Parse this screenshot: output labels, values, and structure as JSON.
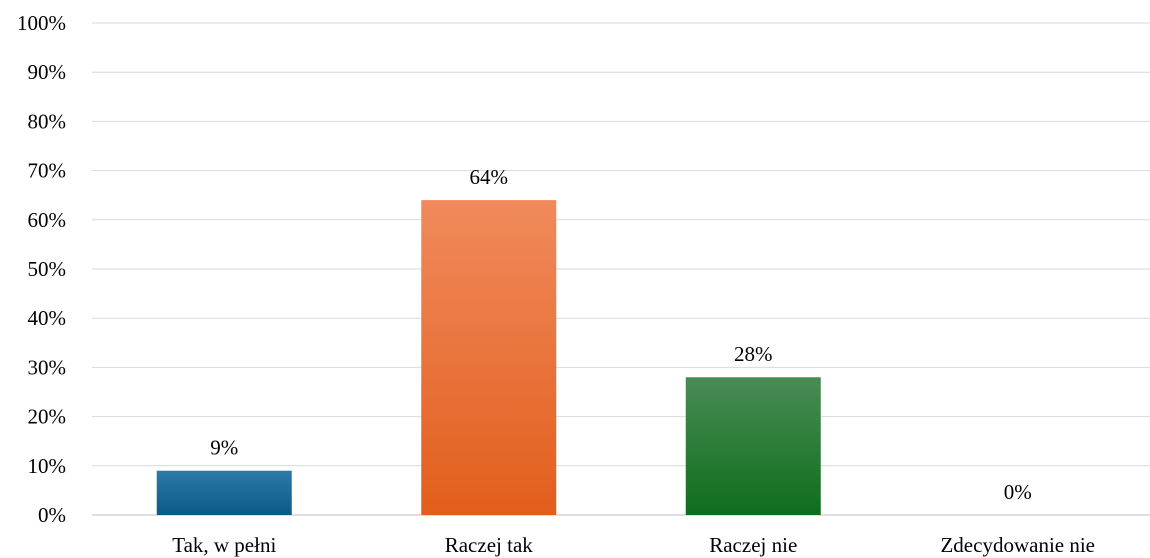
{
  "chart_data": {
    "type": "bar",
    "categories": [
      "Tak, w pełni",
      "Raczej tak",
      "Raczej nie",
      "Zdecydowanie nie"
    ],
    "values": [
      9,
      64,
      28,
      0
    ],
    "data_labels": [
      "9%",
      "64%",
      "28%",
      "0%"
    ],
    "ylim": [
      0,
      100
    ],
    "yticks": [
      0,
      10,
      20,
      30,
      40,
      50,
      60,
      70,
      80,
      90,
      100
    ],
    "ytick_labels": [
      "0%",
      "10%",
      "20%",
      "30%",
      "40%",
      "50%",
      "60%",
      "70%",
      "80%",
      "90%",
      "100%"
    ],
    "grid": true,
    "legend": "none",
    "colors": [
      [
        "#2b7aa8",
        "#0c5a86"
      ],
      [
        "#f08a5c",
        "#e25e1c"
      ],
      [
        "#4a8b55",
        "#0e6e1c"
      ],
      [
        "#cccccc",
        "#aaaaaa"
      ]
    ]
  }
}
